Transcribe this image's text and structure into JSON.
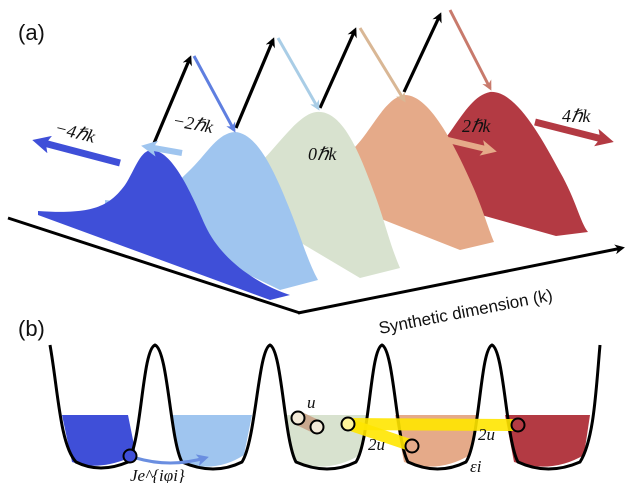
{
  "panel_a": {
    "label": "(a)",
    "momentum_labels": [
      "−4ℏk",
      "−2ℏk",
      "0ℏk",
      "2ℏk",
      "4ℏk"
    ],
    "axis_label": "Synthetic dimension (k)"
  },
  "panel_b": {
    "label": "(b)",
    "u_label": "u",
    "two_u_left": "2u",
    "two_u_right": "2u",
    "epsilon_label": "εi",
    "tunnel_label": "Je^{iφi}"
  },
  "colors": {
    "site_m4": "#3f4fd8",
    "site_m2": "#9fc5ef",
    "site_0": "#d8e2cf",
    "site_p2": "#e5aa89",
    "site_p4": "#b33a43",
    "highlight": "#ffe600",
    "pair": "#c9a88e"
  }
}
